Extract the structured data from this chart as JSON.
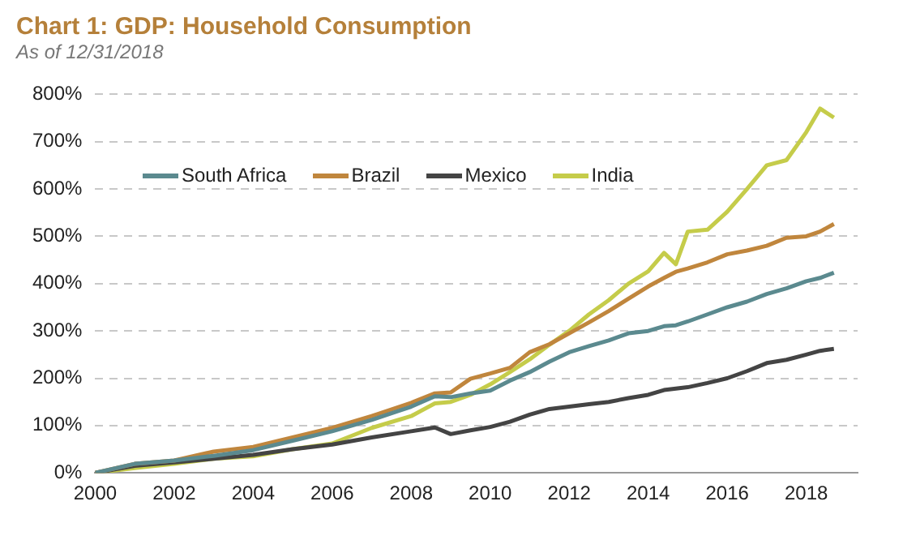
{
  "chart_data": {
    "type": "line",
    "title": "Chart 1: GDP: Household Consumption",
    "subtitle": "As of 12/31/2018",
    "xlim": [
      2000,
      2019.3
    ],
    "xticks": [
      2000,
      2002,
      2004,
      2006,
      2008,
      2010,
      2012,
      2014,
      2016,
      2018
    ],
    "ylim": [
      0,
      800
    ],
    "yticks": [
      {
        "value": 0,
        "label": "0%"
      },
      {
        "value": 100,
        "label": "100%"
      },
      {
        "value": 200,
        "label": "200%"
      },
      {
        "value": 300,
        "label": "300%"
      },
      {
        "value": 400,
        "label": "400%"
      },
      {
        "value": 500,
        "label": "500%"
      },
      {
        "value": 600,
        "label": "600%"
      },
      {
        "value": 700,
        "label": "700%"
      },
      {
        "value": 800,
        "label": "800%"
      }
    ],
    "grid": "y",
    "legend": "top left",
    "line_style": "solid",
    "marker": "none",
    "x": [
      2000,
      2001,
      2002,
      2003,
      2004,
      2005,
      2006,
      2007,
      2008,
      2008.6,
      2009,
      2009.5,
      2010,
      2010.5,
      2011,
      2011.5,
      2012,
      2012.5,
      2013,
      2013.5,
      2014,
      2014.4,
      2014.7,
      2015,
      2015.5,
      2016,
      2016.5,
      2017,
      2017.5,
      2018,
      2018.35,
      2018.7
    ],
    "series": [
      {
        "name": "South Africa",
        "color": "#5b8a8f",
        "values": [
          0,
          19,
          26,
          36,
          48,
          68,
          88,
          112,
          140,
          162,
          160,
          168,
          174,
          195,
          213,
          235,
          255,
          268,
          280,
          295,
          300,
          310,
          312,
          320,
          335,
          350,
          362,
          378,
          390,
          405,
          412,
          423
        ]
      },
      {
        "name": "Brazil",
        "color": "#c0863d",
        "values": [
          0,
          19,
          26,
          45,
          55,
          75,
          95,
          120,
          148,
          168,
          170,
          199,
          210,
          222,
          255,
          272,
          295,
          318,
          342,
          368,
          394,
          412,
          425,
          432,
          445,
          462,
          470,
          480,
          497,
          500,
          510,
          526
        ]
      },
      {
        "name": "Mexico",
        "color": "#444444",
        "values": [
          0,
          15,
          22,
          30,
          38,
          50,
          60,
          75,
          88,
          96,
          82,
          90,
          97,
          108,
          123,
          135,
          140,
          145,
          150,
          158,
          165,
          175,
          178,
          181,
          190,
          200,
          215,
          232,
          239,
          250,
          258,
          262
        ]
      },
      {
        "name": "India",
        "color": "#c5cc4a",
        "values": [
          0,
          10,
          19,
          30,
          35,
          50,
          62,
          95,
          120,
          147,
          150,
          165,
          187,
          213,
          240,
          271,
          300,
          335,
          365,
          400,
          426,
          465,
          441,
          510,
          514,
          552,
          600,
          650,
          661,
          720,
          770,
          751
        ]
      }
    ]
  }
}
